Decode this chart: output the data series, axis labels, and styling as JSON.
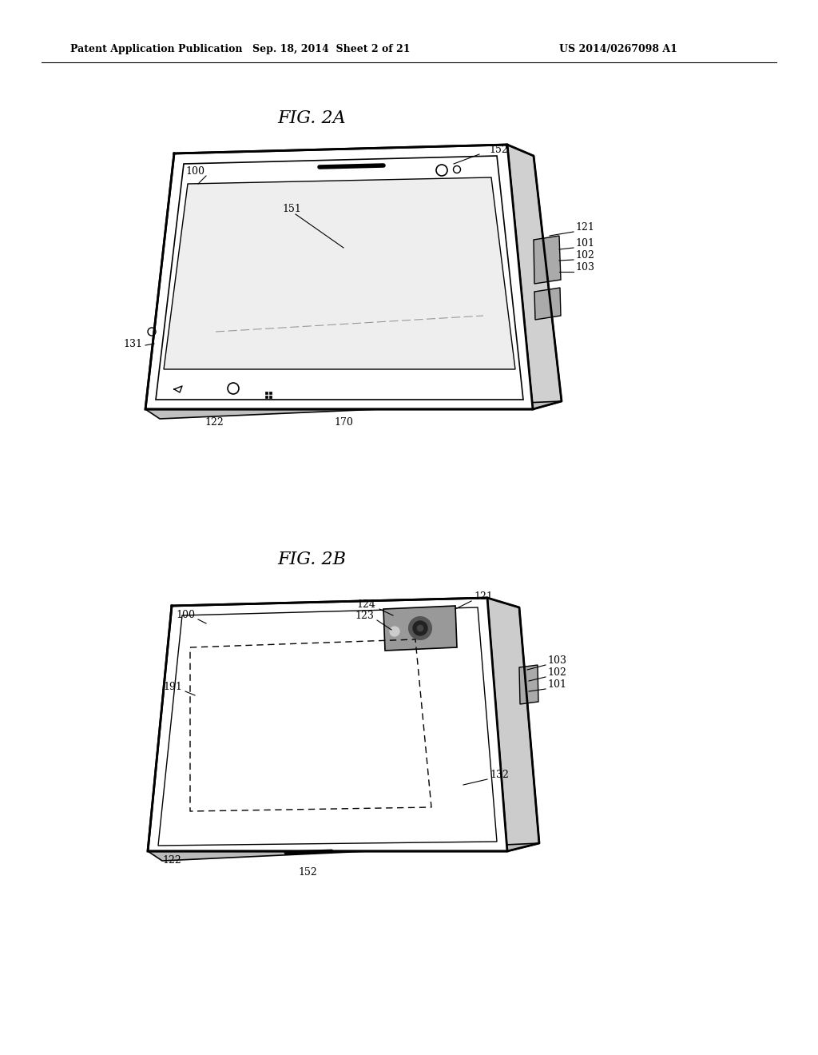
{
  "bg_color": "#ffffff",
  "header_left": "Patent Application Publication",
  "header_mid": "Sep. 18, 2014  Sheet 2 of 21",
  "header_right": "US 2014/0267098 A1",
  "fig2a_title": "FIG. 2A",
  "fig2b_title": "FIG. 2B",
  "text_color": "#000000",
  "line_color": "#000000",
  "label_fontsize": 9,
  "header_fontsize": 9,
  "title_fontsize": 16
}
